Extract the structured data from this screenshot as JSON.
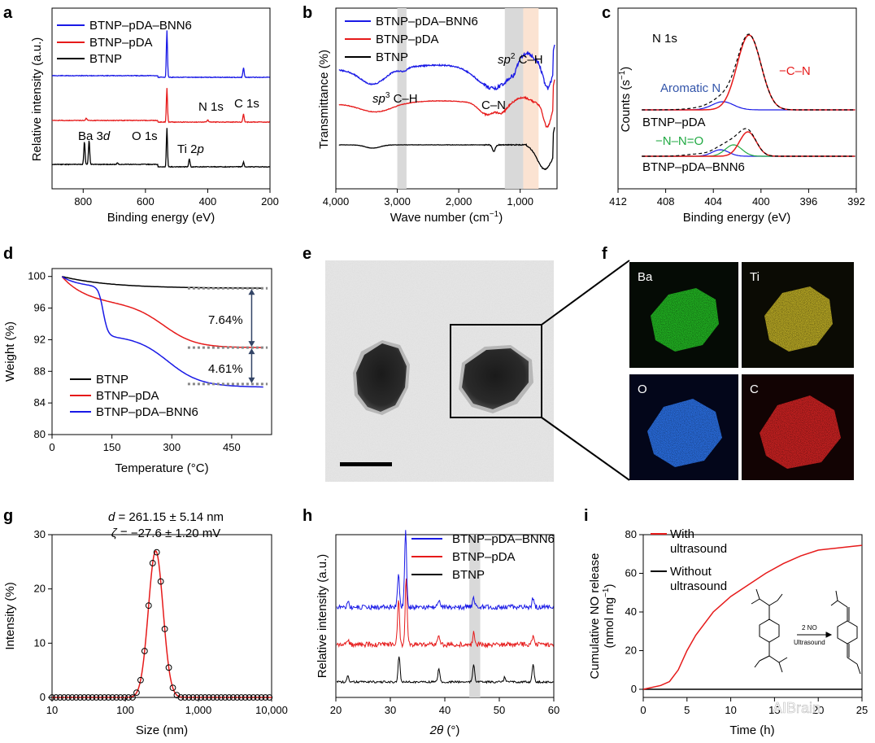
{
  "colors": {
    "blue": "#1a1ae6",
    "red": "#e61a1a",
    "black": "#000000",
    "green": "#22aa44",
    "navy": "#3355aa",
    "band_grey": "#d9d9d9",
    "band_peach": "#fbe3d2"
  },
  "chart_data": [
    {
      "panel": "a",
      "type": "line",
      "xlabel": "Binding energy (eV)",
      "ylabel": "Relative intensity (a.u.)",
      "xlim": [
        900,
        200
      ],
      "xticks": [
        800,
        600,
        400,
        200
      ],
      "x_reversed": true,
      "legend": [
        "BTNP–pDA–BNN6",
        "BTNP–pDA",
        "BTNP"
      ],
      "series": [
        {
          "name": "BTNP–pDA–BNN6",
          "color": "blue",
          "peaks": [
            531,
            285
          ]
        },
        {
          "name": "BTNP–pDA",
          "color": "red",
          "peaks": [
            531,
            285,
            400
          ]
        },
        {
          "name": "BTNP",
          "color": "black",
          "peaks": [
            796,
            781,
            531,
            459,
            285
          ]
        }
      ],
      "annotations": {
        "ba": "Ba 3",
        "ba_it": "d",
        "o": "O 1s",
        "n": "N 1s",
        "c": "C 1s",
        "ti": "Ti 2",
        "ti_it": "p"
      }
    },
    {
      "panel": "b",
      "type": "line",
      "xlabel": "Wave number (cm",
      "xlabel_sup": "−1",
      "xlabel_end": ")",
      "ylabel": "Transmittance (%)",
      "xlim": [
        4000,
        400
      ],
      "xticks": [
        "4,000",
        "3,000",
        "2,000",
        "1,000"
      ],
      "x_reversed": true,
      "legend": [
        "BTNP–pDA–BNN6",
        "BTNP–pDA",
        "BTNP"
      ],
      "bands_cm": [
        [
          3000,
          2850
        ],
        [
          1250,
          950
        ],
        [
          950,
          700
        ]
      ],
      "annotations": {
        "sp3_it": "sp",
        "sp3_sup": "3",
        "sp3_rest": " C–H",
        "sp2_it": "sp",
        "sp2_sup": "2",
        "sp2_rest": " C–H",
        "cn": "C–N"
      }
    },
    {
      "panel": "c",
      "type": "line",
      "title": "N 1s",
      "xlabel": "Binding energy (eV)",
      "ylabel": "Counts (s",
      "ylabel_sup": "−1",
      "ylabel_end": ")",
      "xlim": [
        412,
        392
      ],
      "xticks": [
        412,
        408,
        404,
        400,
        396,
        392
      ],
      "x_reversed": true,
      "series": [
        {
          "sample": "BTNP–pDA",
          "components": [
            {
              "name": "Aromatic N",
              "center": 403.2
            },
            {
              "name": "−C–N",
              "center": 401.0
            }
          ]
        },
        {
          "sample": "BTNP–pDA–BNN6",
          "components": [
            {
              "name": "−N–N=O",
              "center": 402.3
            },
            {
              "name": "−C–N",
              "center": 401.1
            }
          ]
        }
      ],
      "labels": {
        "aromatic": "Aromatic N",
        "cn": "−C–N",
        "nno": "−N–N=O",
        "s1": "BTNP–pDA",
        "s2": "BTNP–pDA–BNN6"
      }
    },
    {
      "panel": "d",
      "type": "line",
      "xlabel": "Temperature (°C)",
      "ylabel": "Weight (%)",
      "xlim": [
        0,
        550
      ],
      "ylim": [
        80,
        101
      ],
      "xticks": [
        0,
        150,
        300,
        450
      ],
      "yticks": [
        100,
        96,
        92,
        88,
        84,
        80
      ],
      "series": [
        {
          "name": "BTNP",
          "color": "black",
          "final": 98.5
        },
        {
          "name": "BTNP–pDA",
          "color": "red",
          "final": 91.0
        },
        {
          "name": "BTNP–pDA–BNN6",
          "color": "blue",
          "final": 86.4
        }
      ],
      "annotations": {
        "d1": "7.64%",
        "d2": "4.61%"
      }
    },
    {
      "panel": "g",
      "type": "scatter",
      "xlabel": "Size (nm)",
      "ylabel": "Intensity (%)",
      "x_scale": "log",
      "xlim": [
        10,
        10000
      ],
      "ylim": [
        0,
        30
      ],
      "xticks": [
        "10",
        "100",
        "1,000",
        "10,000"
      ],
      "yticks": [
        0,
        10,
        20,
        30
      ],
      "stats": {
        "d_it": "d",
        "d_rest": " = 261.15 ± 5.14 nm",
        "z_it": "ζ",
        "z_rest": " = −27.6 ± 1.20 mV"
      },
      "peak": {
        "center_nm": 261,
        "max": 27
      }
    },
    {
      "panel": "h",
      "type": "line",
      "xlabel_it": "2θ",
      "xlabel_rest": " (°)",
      "ylabel": "Relative intensity (a.u.)",
      "xlim": [
        20,
        60
      ],
      "xticks": [
        20,
        30,
        40,
        50,
        60
      ],
      "legend": [
        "BTNP–pDA–BNN6",
        "BTNP–pDA",
        "BTNP"
      ],
      "peaks_deg": [
        22.2,
        31.5,
        38.9,
        45.3,
        51.0,
        56.2
      ],
      "band_deg": [
        44.5,
        46.5
      ]
    },
    {
      "panel": "i",
      "type": "line",
      "xlabel": "Time (h)",
      "ylabel": "Cumulative NO release",
      "ylabel2": "(nmol mg",
      "ylabel2_sup": "−1",
      "ylabel2_end": ")",
      "xlim": [
        0,
        25
      ],
      "ylim": [
        0,
        80
      ],
      "xticks": [
        0,
        5,
        10,
        15,
        20,
        25
      ],
      "yticks": [
        0,
        20,
        40,
        60,
        80
      ],
      "series": [
        {
          "name": "With ultrasound",
          "color": "red",
          "x": [
            0,
            2,
            3,
            4,
            5,
            6,
            8,
            10,
            12,
            14,
            16,
            18,
            20,
            22,
            24,
            25
          ],
          "y": [
            0,
            2,
            4,
            10,
            20,
            28,
            40,
            48,
            54,
            60,
            65,
            69,
            72,
            73,
            74,
            74.5
          ]
        },
        {
          "name": "Without ultrasound",
          "color": "black",
          "x": [
            0,
            25
          ],
          "y": [
            0,
            0
          ]
        }
      ],
      "legend": {
        "l1a": "With",
        "l1b": "ultrasound",
        "l2a": "Without",
        "l2b": "ultrasound"
      },
      "scheme": {
        "reagent": "2 NO",
        "arrow_label": "Ultrasound"
      }
    }
  ],
  "panels": {
    "a": "a",
    "b": "b",
    "c": "c",
    "d": "d",
    "e": "e",
    "f": "f",
    "g": "g",
    "h": "h",
    "i": "i"
  },
  "maps": {
    "ba": "Ba",
    "ti": "Ti",
    "o": "O",
    "c": "C"
  },
  "watermark": "AIBrain"
}
